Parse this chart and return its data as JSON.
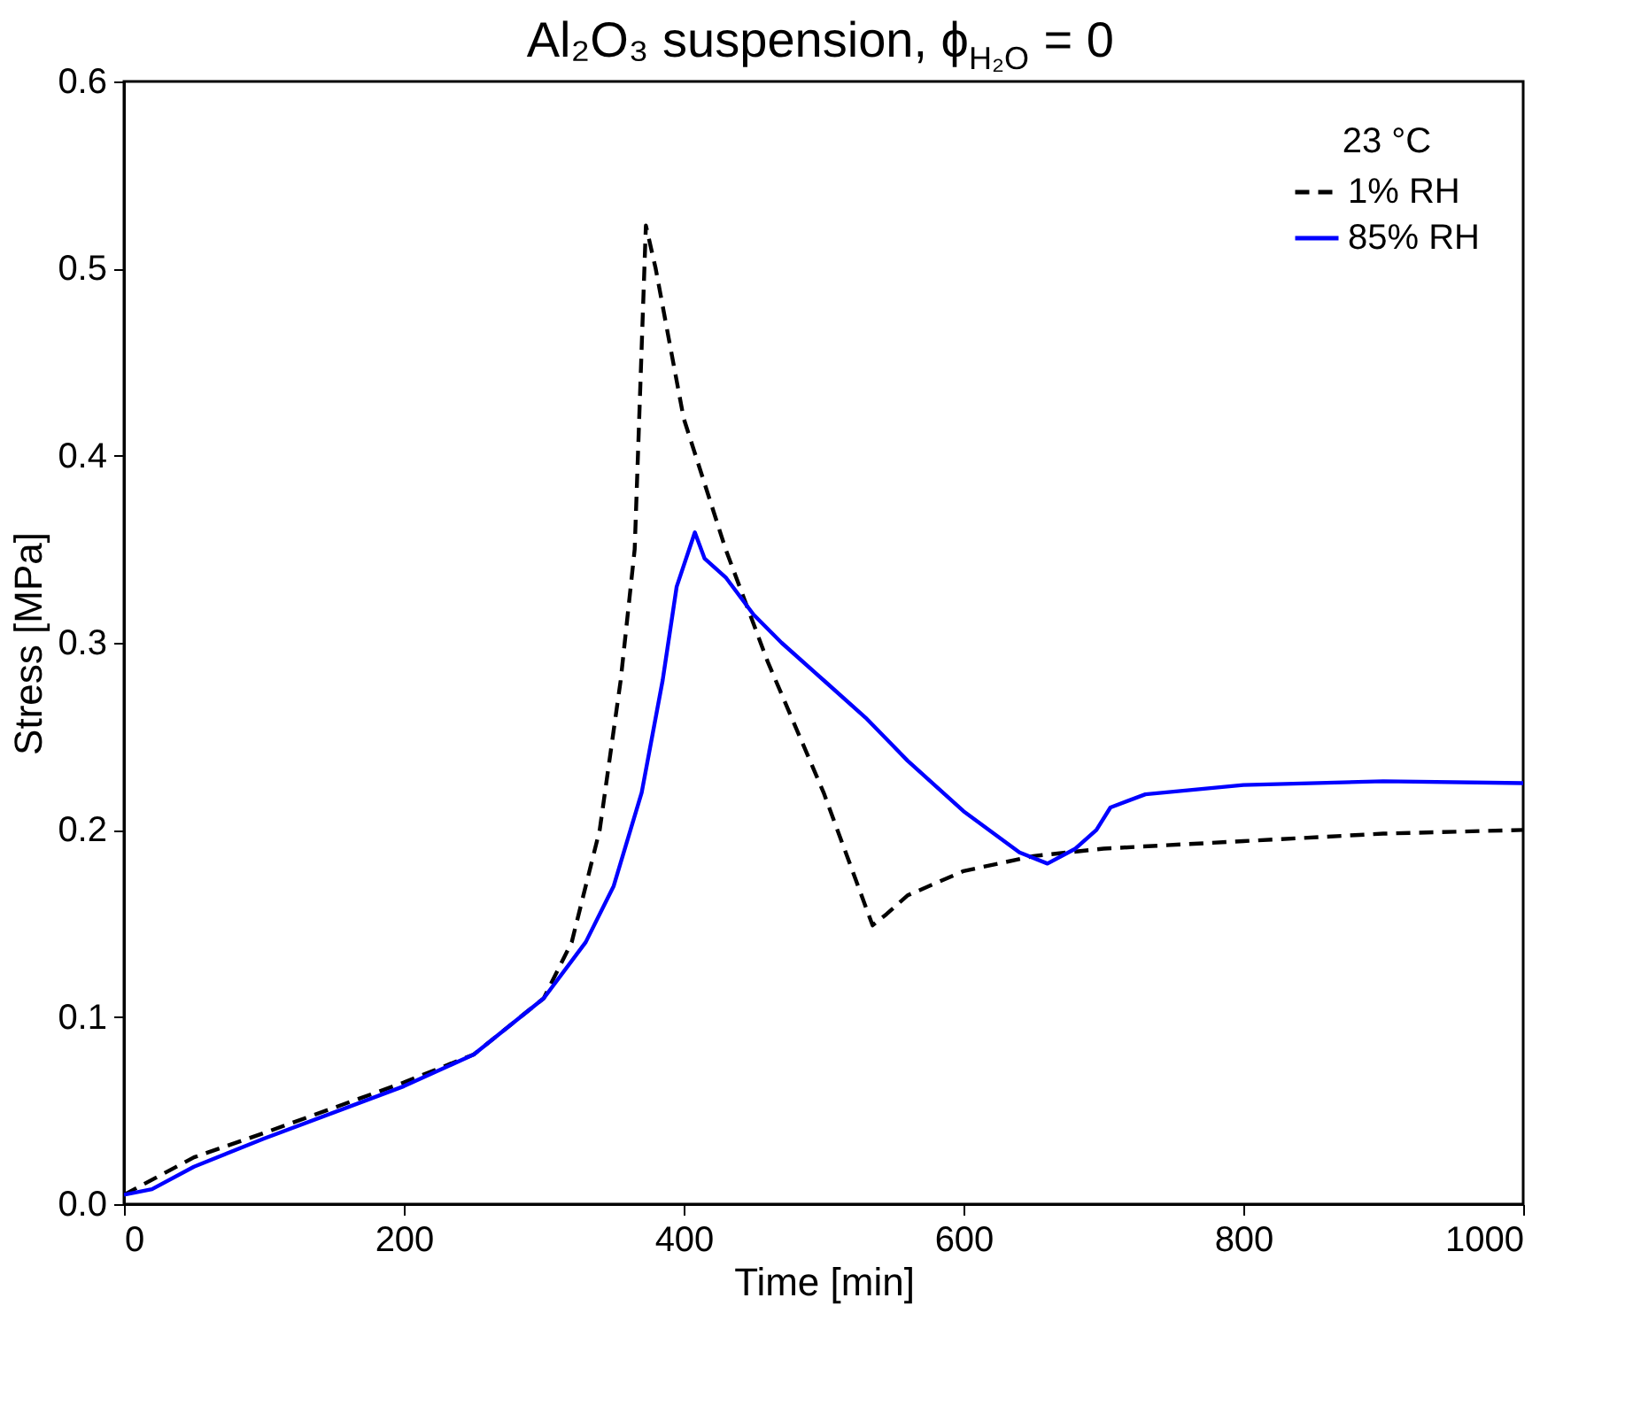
{
  "chart_data": {
    "type": "line",
    "title": "Al₂O₃ suspension, ϕ$_{H₂O}$ = 0",
    "xlabel": "Time [min]",
    "ylabel": "Stress [MPa]",
    "legend_title": "23 °C",
    "legend": "top right",
    "grid": false,
    "xlim": [
      0,
      1000
    ],
    "xticks": [
      0,
      200,
      400,
      600,
      800,
      1000
    ],
    "ylim": [
      0,
      0.6
    ],
    "yticks": [
      {
        "value": 0,
        "label": "0.0"
      },
      0.1,
      0.2,
      0.3,
      0.4,
      0.5,
      0.6
    ],
    "series": [
      {
        "name": "1% RH",
        "color": "#000000",
        "line_style": "dashed",
        "x": [
          0,
          50,
          100,
          200,
          250,
          300,
          320,
          340,
          355,
          365,
          373,
          380,
          400,
          430,
          460,
          500,
          535,
          545,
          560,
          600,
          650,
          700,
          800,
          900,
          1000
        ],
        "values": [
          0.005,
          0.025,
          0.038,
          0.065,
          0.08,
          0.11,
          0.14,
          0.2,
          0.28,
          0.35,
          0.523,
          0.5,
          0.42,
          0.35,
          0.29,
          0.22,
          0.149,
          0.155,
          0.165,
          0.178,
          0.186,
          0.19,
          0.194,
          0.198,
          0.2
        ]
      },
      {
        "name": "85% RH",
        "color": "#0000ff",
        "line_style": "solid",
        "x": [
          0,
          20,
          50,
          100,
          200,
          250,
          300,
          330,
          350,
          370,
          385,
          395,
          408,
          415,
          430,
          450,
          470,
          500,
          530,
          560,
          600,
          640,
          660,
          680,
          695,
          705,
          730,
          800,
          900,
          1000
        ],
        "values": [
          0.005,
          0.008,
          0.02,
          0.035,
          0.063,
          0.08,
          0.11,
          0.14,
          0.17,
          0.22,
          0.28,
          0.33,
          0.359,
          0.345,
          0.335,
          0.315,
          0.3,
          0.28,
          0.26,
          0.237,
          0.21,
          0.188,
          0.182,
          0.19,
          0.2,
          0.212,
          0.219,
          0.224,
          0.226,
          0.225
        ]
      }
    ]
  }
}
